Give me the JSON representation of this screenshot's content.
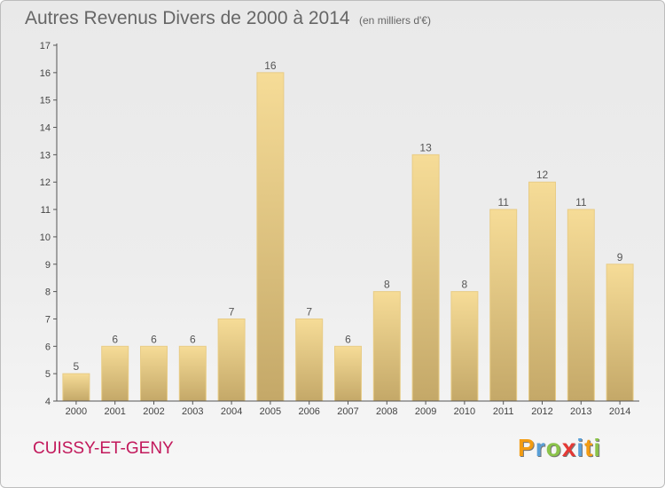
{
  "chart_data": {
    "type": "bar",
    "title": "Autres Revenus Divers de 2000 à 2014",
    "subtitle": "(en milliers d'€)",
    "categories": [
      "2000",
      "2001",
      "2002",
      "2003",
      "2004",
      "2005",
      "2006",
      "2007",
      "2008",
      "2009",
      "2010",
      "2011",
      "2012",
      "2013",
      "2014"
    ],
    "values": [
      5,
      6,
      6,
      6,
      7,
      16,
      7,
      6,
      8,
      13,
      8,
      11,
      12,
      11,
      9
    ],
    "ylim": [
      4,
      17
    ],
    "yticks": [
      4,
      5,
      6,
      7,
      8,
      9,
      10,
      11,
      12,
      13,
      14,
      15,
      16,
      17
    ],
    "grid": false,
    "legend": "none",
    "colors": {
      "bar_light": "#f6dc97",
      "bar_dark": "#c4a868",
      "bar_edge": "#e8cc86",
      "axis": "#555555"
    }
  },
  "footer": {
    "town": "CUISSY-ET-GENY",
    "brand": [
      "P",
      "r",
      "o",
      "x",
      "i",
      "t",
      "i"
    ],
    "brand_colors": [
      "#f39c12",
      "#5aa0d8",
      "#8bc34a",
      "#e53935",
      "#5aa0d8",
      "#f39c12",
      "#8bc34a"
    ]
  }
}
